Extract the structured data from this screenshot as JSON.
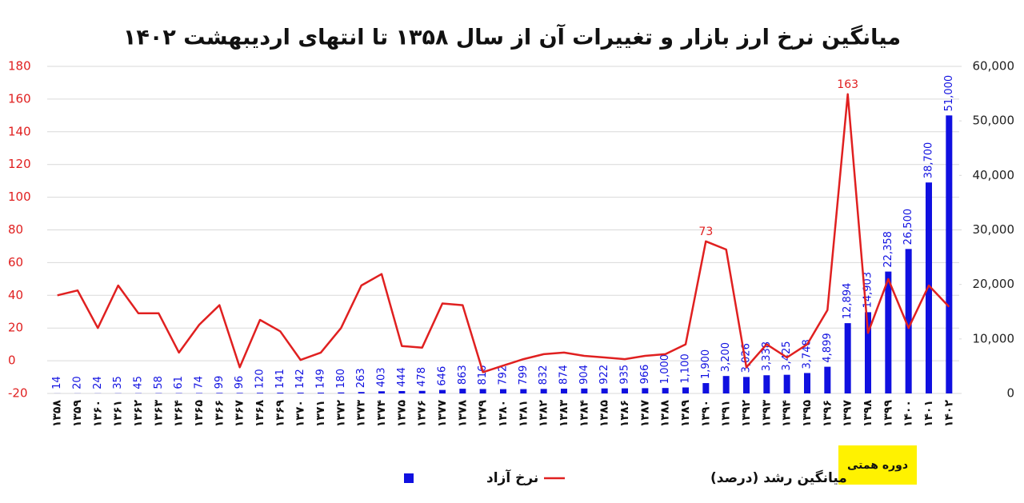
{
  "chart_data": {
    "type": "bar_line",
    "title": "میانگین نرخ ارز بازار و تغییرات آن از سال ۱۳۵۸ تا انتهای اردیبهشت ۱۴۰۲",
    "categories": [
      "۱۳۵۸",
      "۱۳۵۹",
      "۱۳۶۰",
      "۱۳۶۱",
      "۱۳۶۲",
      "۱۳۶۳",
      "۱۳۶۴",
      "۱۳۶۵",
      "۱۳۶۶",
      "۱۳۶۷",
      "۱۳۶۸",
      "۱۳۶۹",
      "۱۳۷۰",
      "۱۳۷۱",
      "۱۳۷۲",
      "۱۳۷۳",
      "۱۳۷۴",
      "۱۳۷۵",
      "۱۳۷۶",
      "۱۳۷۷",
      "۱۳۷۸",
      "۱۳۷۹",
      "۱۳۸۰",
      "۱۳۸۱",
      "۱۳۸۲",
      "۱۳۸۳",
      "۱۳۸۴",
      "۱۳۸۵",
      "۱۳۸۶",
      "۱۳۸۷",
      "۱۳۸۸",
      "۱۳۸۹",
      "۱۳۹۰",
      "۱۳۹۱",
      "۱۳۹۲",
      "۱۳۹۳",
      "۱۳۹۴",
      "۱۳۹۵",
      "۱۳۹۶",
      "۱۳۹۷",
      "۱۳۹۸",
      "۱۳۹۹",
      "۱۴۰۰",
      "۱۴۰۱",
      "۱۴۰۲"
    ],
    "series": [
      {
        "name": "نرخ آزاد",
        "type": "bar",
        "axis": "y2",
        "color": "#1010e0",
        "values": [
          14,
          20,
          24,
          35,
          45,
          58,
          61,
          74,
          99,
          96,
          120,
          141,
          142,
          149,
          180,
          263,
          403,
          444,
          478,
          646,
          863,
          816,
          792,
          799,
          832,
          874,
          904,
          922,
          935,
          966,
          1000,
          1100,
          1900,
          3200,
          3026,
          3338,
          3425,
          3748,
          4899,
          12894,
          14903,
          22358,
          26500,
          38700,
          51000
        ],
        "value_labels": [
          "14",
          "20",
          "24",
          "35",
          "45",
          "58",
          "61",
          "74",
          "99",
          "96",
          "120",
          "141",
          "142",
          "149",
          "180",
          "263",
          "403",
          "444",
          "478",
          "646",
          "863",
          "816",
          "792",
          "799",
          "832",
          "874",
          "904",
          "922",
          "935",
          "966",
          "1,000",
          "1,100",
          "1,900",
          "3,200",
          "3,026",
          "3,338",
          "3,425",
          "3,748",
          "4,899",
          "12,894",
          "14,903",
          "22,358",
          "26,500",
          "38,700",
          "51,000"
        ]
      },
      {
        "name": "میانگین رشد (درصد)",
        "type": "line",
        "axis": "y",
        "color": "#e02020",
        "values": [
          40,
          43,
          20,
          46,
          29,
          29,
          5,
          22,
          34,
          -4,
          25,
          18,
          0.5,
          5,
          20,
          46,
          53,
          9,
          8,
          35,
          34,
          -7,
          -3,
          1,
          4,
          5,
          3,
          2,
          1,
          3,
          4,
          10,
          73,
          68,
          -4,
          10,
          2,
          10,
          31,
          163,
          17,
          50,
          20,
          46,
          33
        ],
        "value_labels": [
          null,
          null,
          null,
          null,
          null,
          null,
          null,
          null,
          null,
          null,
          null,
          null,
          null,
          null,
          null,
          null,
          null,
          null,
          null,
          null,
          null,
          null,
          null,
          null,
          null,
          null,
          null,
          null,
          null,
          null,
          null,
          null,
          "73",
          null,
          null,
          null,
          null,
          null,
          null,
          "163",
          null,
          null,
          null,
          null,
          null
        ]
      }
    ],
    "ylim": [
      -20,
      180
    ],
    "yticks": [
      -20,
      0,
      20,
      40,
      60,
      80,
      100,
      120,
      140,
      160,
      180
    ],
    "y2lim": [
      0,
      60000
    ],
    "y2ticks": [
      0,
      {
        "value": 10000,
        "label": "10,000"
      },
      {
        "value": 20000,
        "label": "20,000"
      },
      {
        "value": 30000,
        "label": "30,000"
      },
      {
        "value": 40000,
        "label": "40,000"
      },
      {
        "value": 50000,
        "label": "50,000"
      },
      {
        "value": 60000,
        "label": "60,000"
      }
    ],
    "grid": true,
    "annotation": "دوره همتی"
  }
}
